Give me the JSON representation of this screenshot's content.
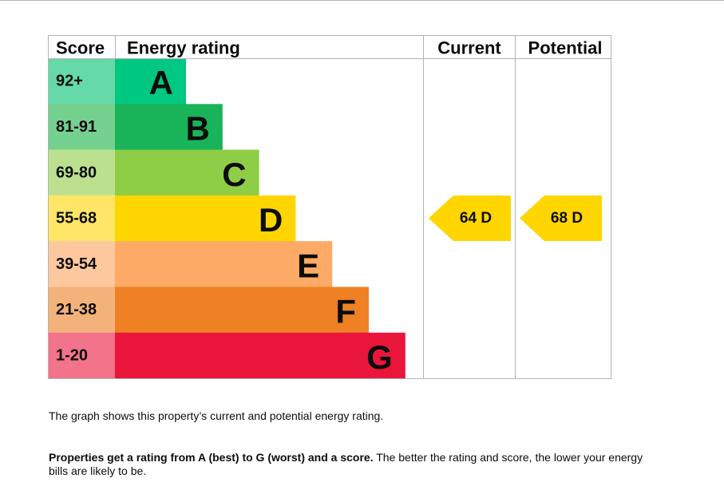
{
  "header": {
    "score": "Score",
    "rating": "Energy rating",
    "current": "Current",
    "potential": "Potential"
  },
  "rows": [
    {
      "score": "92+",
      "band": "A"
    },
    {
      "score": "81-91",
      "band": "B"
    },
    {
      "score": "69-80",
      "band": "C"
    },
    {
      "score": "55-68",
      "band": "D"
    },
    {
      "score": "39-54",
      "band": "E"
    },
    {
      "score": "21-38",
      "band": "F"
    },
    {
      "score": "1-20",
      "band": "G"
    }
  ],
  "current": {
    "label": "64 D"
  },
  "potential": {
    "label": "68 D"
  },
  "text": {
    "line1": "The graph shows this property’s current and potential energy rating.",
    "line2_bold": "Properties get a rating from A (best) to G (worst) and a score.",
    "line2_rest": "The better the rating and score, the lower your energy bills are likely to be."
  }
}
